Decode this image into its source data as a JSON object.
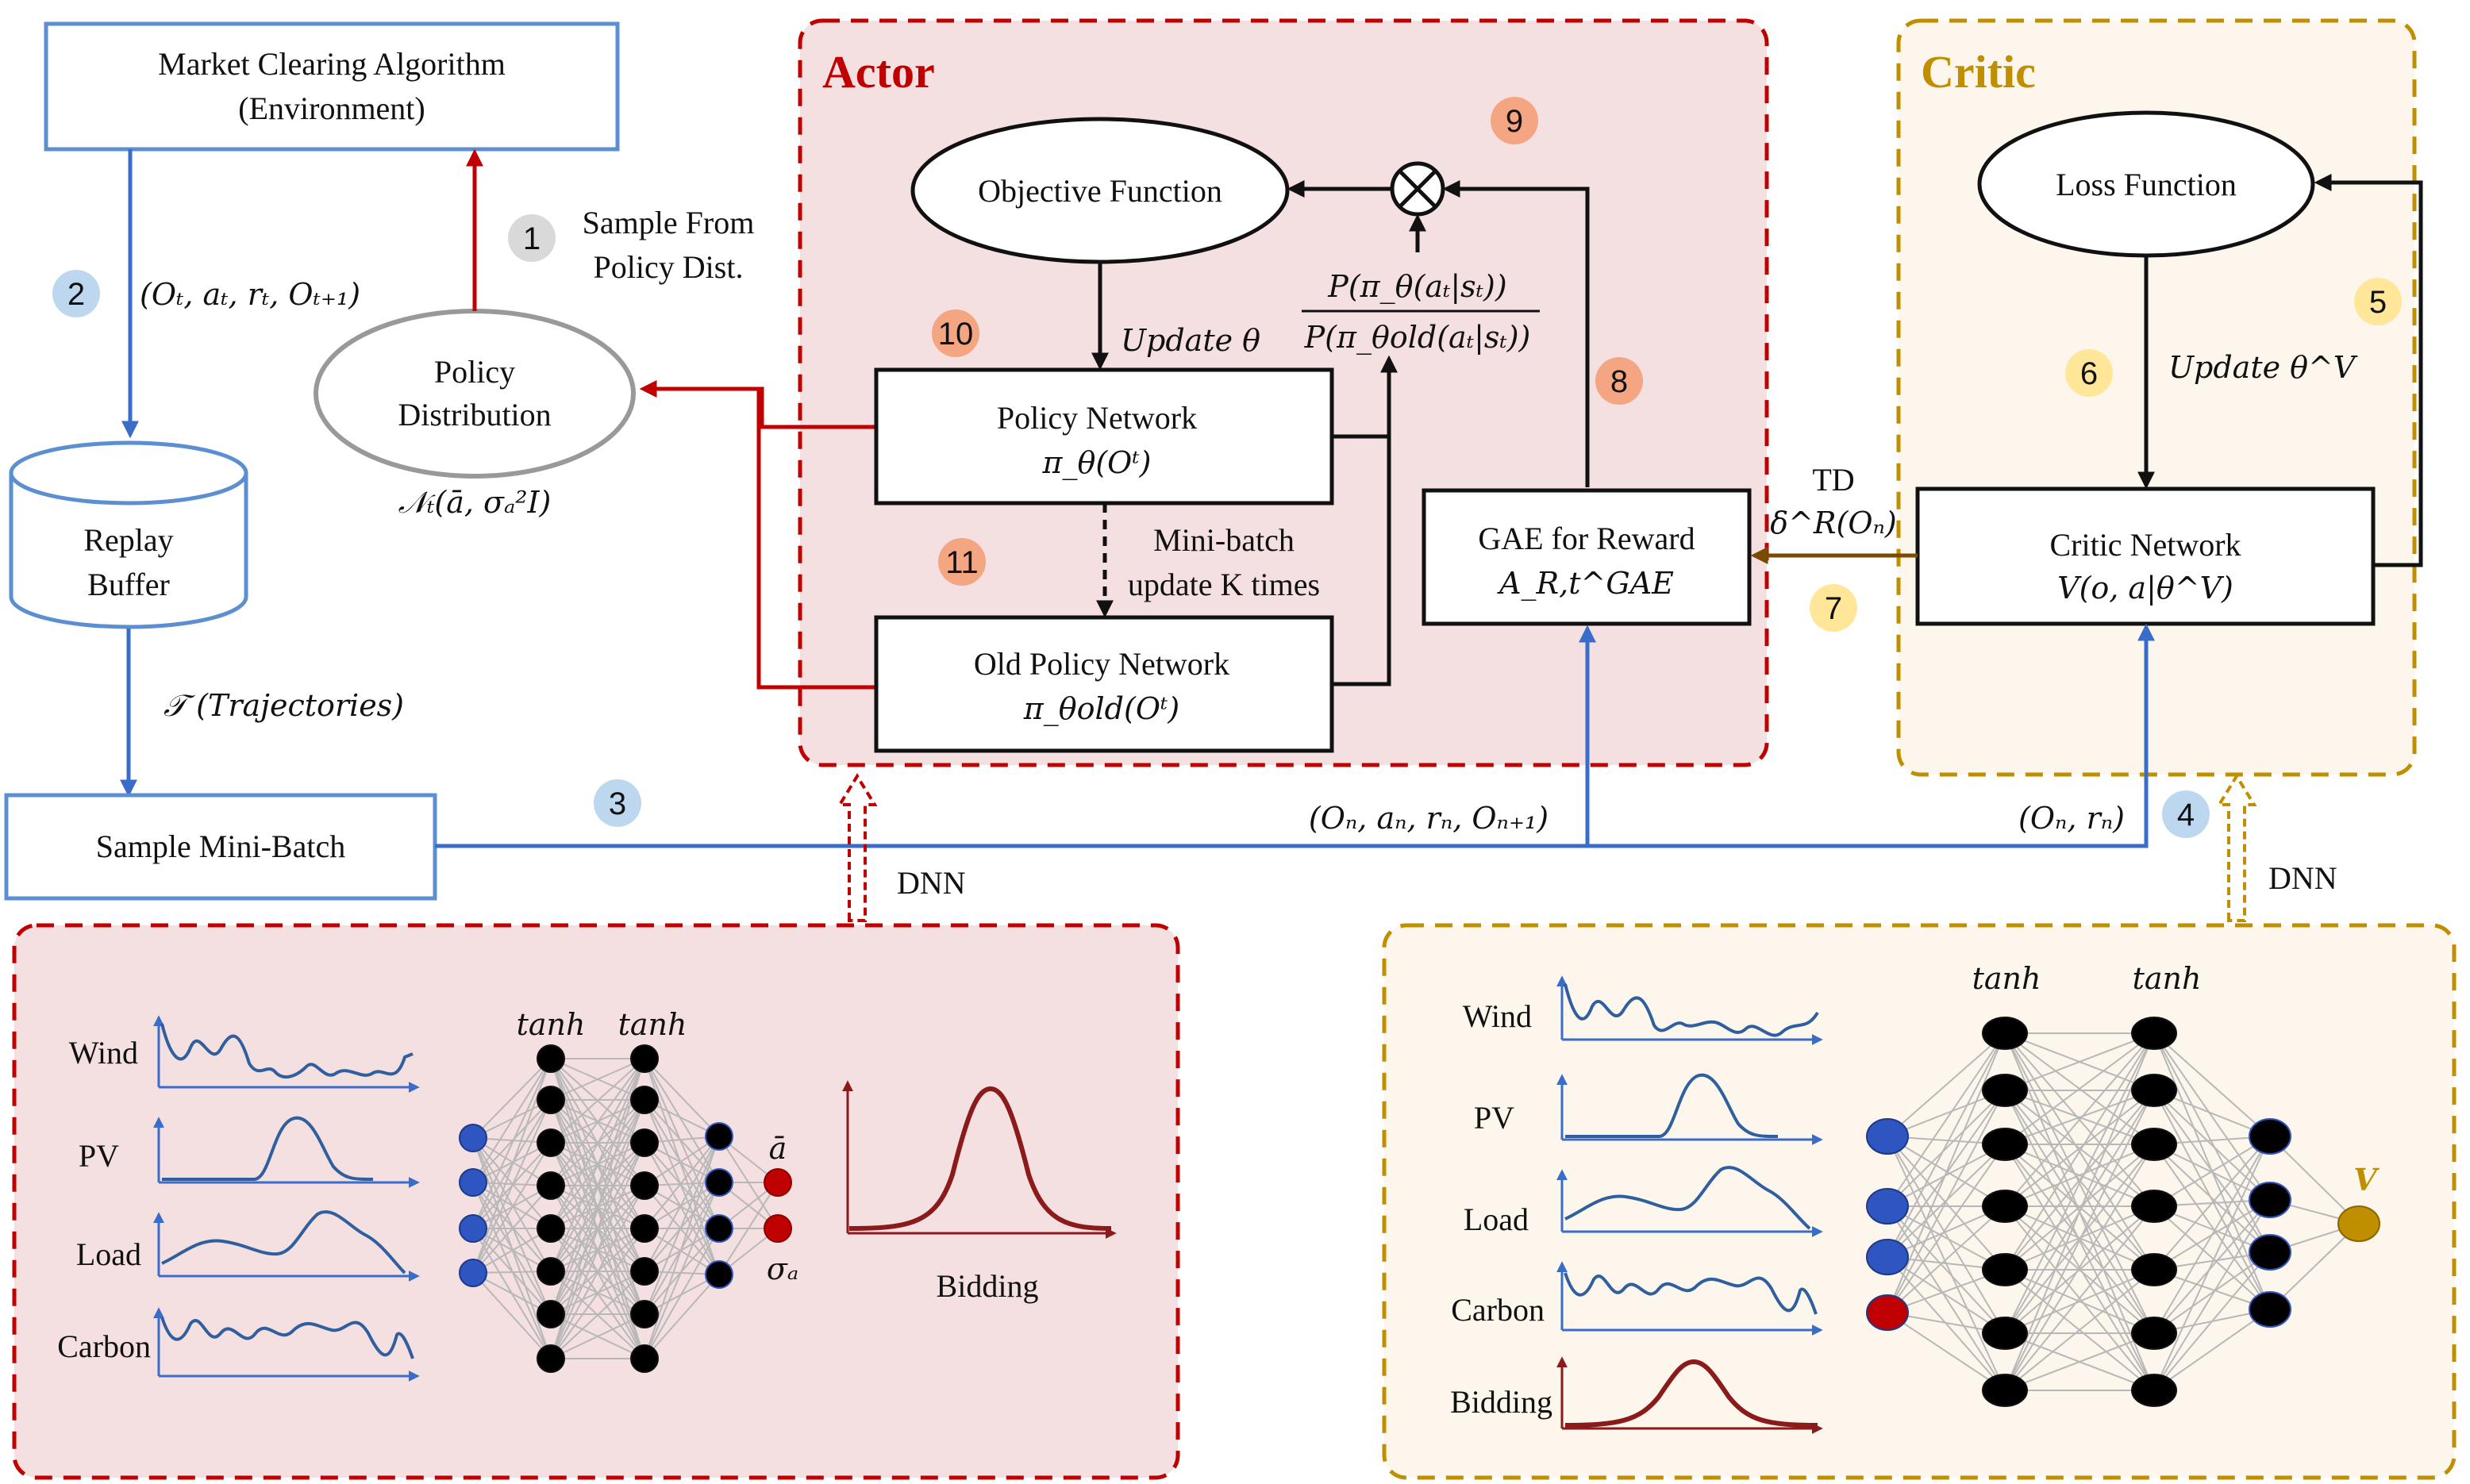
{
  "colors": {
    "actor_border": "#c00000",
    "actor_fill": "#f4dfe1",
    "critic_border": "#bf8f00",
    "critic_fill": "#fdf6ec",
    "blue": "#3a6cc9",
    "red": "#c00000",
    "brown": "#8a5a00",
    "badge_gray": "#d9d9d9",
    "badge_blue": "#bdd7ee",
    "badge_orange": "#f4a582",
    "badge_yellow": "#ffe699"
  },
  "env": {
    "line1": "Market Clearing Algorithm",
    "line2": "(Environment)"
  },
  "replay": {
    "line1": "Replay",
    "line2": "Buffer"
  },
  "minibatch": {
    "label": "Sample Mini-Batch"
  },
  "policy_dist": {
    "line1": "Policy",
    "line2": "Distribution",
    "formula": "𝒩ₜ(ā, σₐ²I)"
  },
  "sample_from": {
    "line1": "Sample From",
    "line2": "Policy Dist."
  },
  "tuple_env": "(Oₜ, aₜ, rₜ, Oₜ₊₁)",
  "trajectories": "𝒯 (Trajectories)",
  "actor": {
    "title": "Actor",
    "objective": "Objective Function",
    "update_theta": "Update θ",
    "ratio_num": "P(π_θ(aₜ|sₜ))",
    "ratio_den": "P(π_θold(aₜ|sₜ))",
    "policy_net": {
      "line1": "Policy Network",
      "line2": "π_θ(Oᵗ)"
    },
    "old_policy_net": {
      "line1": "Old Policy Network",
      "line2": "π_θold(Oᵗ)"
    },
    "minibatch_update": {
      "line1": "Mini-batch",
      "line2": "update K times"
    },
    "gae": {
      "line1": "GAE for Reward",
      "line2": "A_R,t^GAE"
    }
  },
  "critic": {
    "title": "Critic",
    "loss": "Loss Function",
    "update_theta_v": "Update θ^V",
    "critic_net": {
      "line1": "Critic Network",
      "line2": "V(o, a|θ^V)"
    },
    "td_line1": "TD",
    "td_line2": "δ^R(Oₙ)"
  },
  "tuple_n": "(Oₙ, aₙ, rₙ, Oₙ₊₁)",
  "tuple_critic": "(Oₙ, rₙ)",
  "dnn": "DNN",
  "badges": [
    "1",
    "2",
    "3",
    "4",
    "5",
    "6",
    "7",
    "8",
    "9",
    "10",
    "11"
  ],
  "actor_dnn": {
    "inputs": [
      "Wind",
      "PV",
      "Load",
      "Carbon"
    ],
    "activations": [
      "tanh",
      "tanh"
    ],
    "outputs": [
      "ā",
      "σₐ"
    ],
    "curve_label": "Bidding"
  },
  "critic_dnn": {
    "inputs": [
      "Wind",
      "PV",
      "Load",
      "Carbon",
      "Bidding"
    ],
    "activations": [
      "tanh",
      "tanh"
    ],
    "output": "V"
  }
}
